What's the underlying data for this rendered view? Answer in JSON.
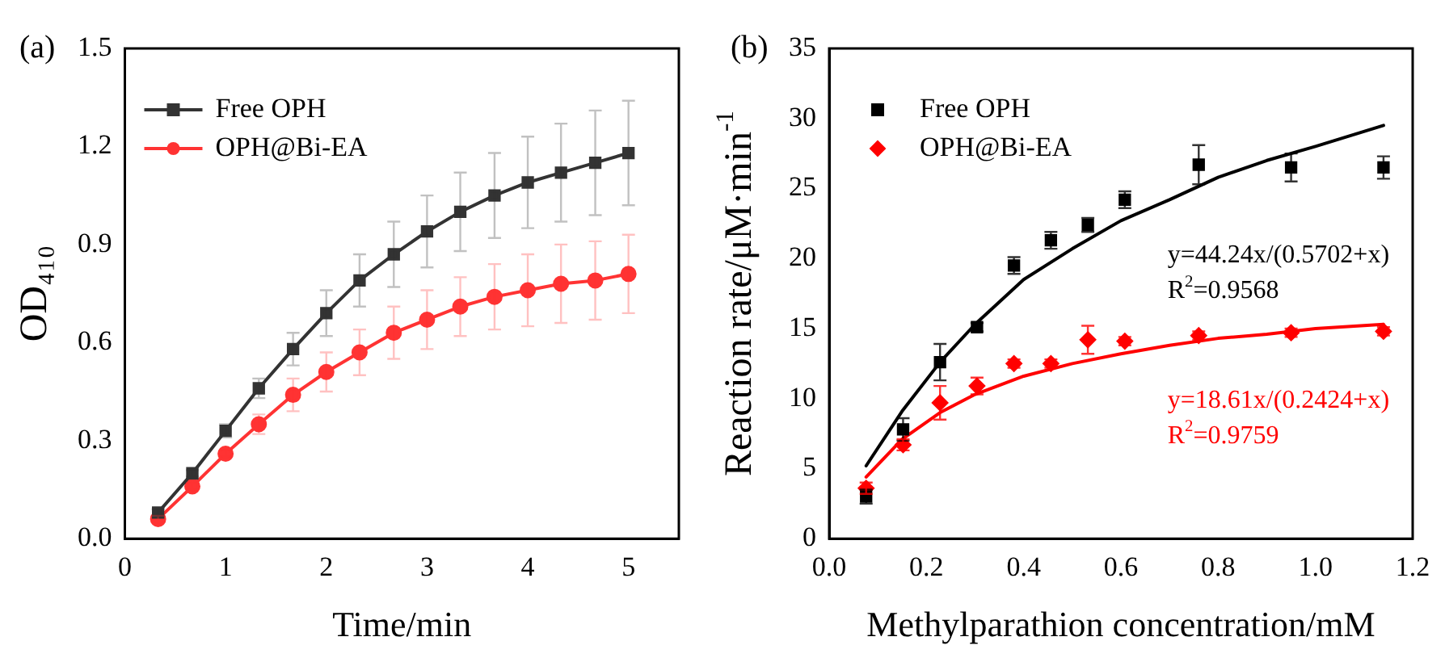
{
  "chart_data": [
    {
      "type": "line",
      "title": "(a)",
      "xlabel": "Time/min",
      "ylabel": "OD₄₁₀",
      "x": [
        0.33,
        0.67,
        1,
        1.33,
        1.67,
        2,
        2.33,
        2.67,
        3,
        3.33,
        3.67,
        4,
        4.33,
        4.67,
        5
      ],
      "series": [
        {
          "name": "Free OPH",
          "color": "#333333",
          "marker": "square",
          "values": [
            0.08,
            0.2,
            0.33,
            0.46,
            0.58,
            0.69,
            0.79,
            0.87,
            0.94,
            1.0,
            1.05,
            1.09,
            1.12,
            1.15,
            1.18
          ],
          "errors": [
            0.01,
            0.01,
            0.02,
            0.03,
            0.05,
            0.07,
            0.08,
            0.1,
            0.11,
            0.12,
            0.13,
            0.14,
            0.15,
            0.16,
            0.16
          ]
        },
        {
          "name": "OPH@Bi-EA",
          "color": "#ff3333",
          "marker": "circle",
          "values": [
            0.06,
            0.16,
            0.26,
            0.35,
            0.44,
            0.51,
            0.57,
            0.63,
            0.67,
            0.71,
            0.74,
            0.76,
            0.78,
            0.79,
            0.81
          ],
          "errors": [
            0.01,
            0.01,
            0.01,
            0.03,
            0.05,
            0.06,
            0.07,
            0.08,
            0.09,
            0.09,
            0.1,
            0.11,
            0.12,
            0.12,
            0.12
          ]
        }
      ],
      "xlim": [
        0,
        5.5
      ],
      "xticks": [
        0,
        1,
        2,
        3,
        4,
        5
      ],
      "ylim": [
        0,
        1.5
      ],
      "yticks": [
        {
          "value": 0,
          "label": "0.0"
        },
        0.3,
        0.6,
        0.9,
        1.2,
        1.5
      ],
      "legend": "top left",
      "grid": false
    },
    {
      "type": "scatter",
      "title": "(b)",
      "xlabel": "Methylparathion concentration/mM",
      "ylabel": "Reaction rate/μM·min$^{-1}$",
      "x": [
        0.076,
        0.152,
        0.228,
        0.304,
        0.38,
        0.456,
        0.532,
        0.608,
        0.76,
        0.95,
        1.14
      ],
      "series": [
        {
          "name": "Free OPH",
          "color": "#000000",
          "marker": "square",
          "values": [
            3.0,
            7.8,
            12.6,
            15.1,
            19.5,
            21.3,
            22.4,
            24.2,
            26.7,
            26.5,
            26.5
          ],
          "errors": [
            0.5,
            0.8,
            1.3,
            0.3,
            0.6,
            0.6,
            0.5,
            0.6,
            1.4,
            1.0,
            0.8
          ]
        },
        {
          "name": "OPH@Bi-EA",
          "color": "#ff0000",
          "marker": "diamond",
          "values": [
            3.6,
            6.7,
            9.7,
            10.9,
            12.5,
            12.5,
            14.2,
            14.1,
            14.5,
            14.7,
            14.8
          ],
          "errors": [
            0.4,
            0.4,
            1.2,
            0.6,
            0.3,
            0.3,
            1.0,
            0.3,
            0.3,
            0.3,
            0.3
          ]
        },
        {
          "type": "line",
          "color": "#000000",
          "marker": "none",
          "x": [
            0.076,
            0.15,
            0.228,
            0.3,
            0.4,
            0.5,
            0.6,
            0.7,
            0.8,
            0.9,
            1.0,
            1.14
          ],
          "values": [
            5.2,
            9.1,
            12.6,
            15.3,
            18.5,
            20.7,
            22.7,
            24.2,
            25.8,
            27.0,
            28.0,
            29.5
          ]
        },
        {
          "type": "line",
          "color": "#ff0000",
          "marker": "none",
          "x": [
            0.076,
            0.15,
            0.228,
            0.3,
            0.4,
            0.5,
            0.6,
            0.7,
            0.8,
            0.9,
            1.0,
            1.14
          ],
          "values": [
            4.4,
            7.1,
            9.0,
            10.3,
            11.6,
            12.5,
            13.2,
            13.8,
            14.3,
            14.6,
            15.0,
            15.3
          ]
        }
      ],
      "annotations": [
        "y=44.24x/(0.5702+x)",
        "R$^{2}$=0.9568",
        "y=18.61x/(0.2424+x)",
        "R$^{2}$=0.9759"
      ],
      "xlim": [
        0,
        1.2
      ],
      "xticks": [
        {
          "value": 0,
          "label": "0.0"
        },
        0.2,
        0.4,
        0.6,
        0.8,
        {
          "value": 1,
          "label": "1.0"
        },
        1.2
      ],
      "ylim": [
        0,
        35
      ],
      "yticks": [
        0,
        5,
        10,
        15,
        20,
        25,
        30,
        35
      ],
      "legend": "top left",
      "grid": false
    }
  ]
}
